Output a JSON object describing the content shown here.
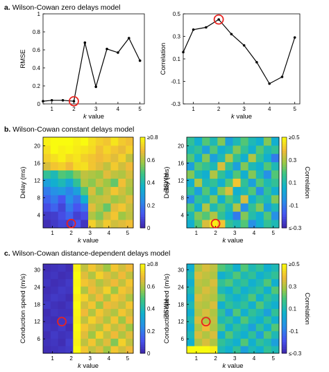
{
  "panels": [
    {
      "letter": "a.",
      "title": "Wilson-Cowan zero delays model"
    },
    {
      "letter": "b.",
      "title": "Wilson-Cowan constant delays model"
    },
    {
      "letter": "c.",
      "title": "Wilson-Cowan distance-dependent delays model"
    }
  ],
  "colors": {
    "line": "#000000",
    "highlight": "#e8231f",
    "heat_low": "#3e26a8",
    "heat_high": "#f9fb0e"
  },
  "chart_data": [
    {
      "id": "a-rmse",
      "type": "line",
      "xlabel_var": "k",
      "xlabel_rest": " value",
      "ylabel": "RMSE",
      "xlim": [
        0.6,
        5.2
      ],
      "ylim": [
        0,
        1
      ],
      "xticks": [
        "1",
        "2",
        "3",
        "4",
        "5"
      ],
      "yticks": [
        "0",
        "0.2",
        "0.4",
        "0.6",
        "0.8",
        "1"
      ],
      "x": [
        0.6,
        1.0,
        1.5,
        2.0,
        2.5,
        3.0,
        3.5,
        4.0,
        4.5,
        5.0
      ],
      "y": [
        0.03,
        0.04,
        0.04,
        0.03,
        0.68,
        0.19,
        0.61,
        0.57,
        0.73,
        0.48
      ],
      "highlight": {
        "x": 2.0,
        "y": 0.03
      }
    },
    {
      "id": "a-corr",
      "type": "line",
      "xlabel_var": "k",
      "xlabel_rest": " value",
      "ylabel": "Correlation",
      "xlim": [
        0.6,
        5.2
      ],
      "ylim": [
        -0.3,
        0.5
      ],
      "xticks": [
        "1",
        "2",
        "3",
        "4",
        "5"
      ],
      "yticks": [
        "-0.3",
        "-0.1",
        "0.1",
        "0.3",
        "0.5"
      ],
      "x": [
        0.6,
        1.0,
        1.5,
        2.0,
        2.5,
        3.0,
        3.5,
        4.0,
        4.5,
        5.0
      ],
      "y": [
        0.16,
        0.36,
        0.38,
        0.45,
        0.32,
        0.22,
        0.07,
        -0.12,
        -0.06,
        0.29
      ],
      "highlight": {
        "x": 2.0,
        "y": 0.45
      }
    },
    {
      "id": "b-rmse",
      "type": "heatmap",
      "xlabel_var": "k",
      "xlabel_rest": " value",
      "ylabel": "Delay (ms)",
      "colorbar_label": "RMSE",
      "colorbar_ticks": [
        "≥0.8",
        "0.6",
        "0.4",
        "0.2",
        "0"
      ],
      "clim": [
        0,
        0.8
      ],
      "xticks": [
        "1",
        "2",
        "3",
        "4",
        "5"
      ],
      "yticks": [
        "4",
        "8",
        "12",
        "16",
        "20"
      ],
      "grid_cols_x": [
        0.5,
        5.3
      ],
      "grid_rows_y": [
        1,
        22
      ],
      "highlight": {
        "x": 2.0,
        "y": 2
      },
      "values": [
        [
          0.02,
          0.05,
          0.08,
          0.06,
          0.12,
          0.04,
          0.72,
          0.62,
          0.71,
          0.64,
          0.66,
          0.69
        ],
        [
          0.05,
          0.06,
          0.1,
          0.15,
          0.07,
          0.1,
          0.6,
          0.55,
          0.64,
          0.7,
          0.58,
          0.62
        ],
        [
          0.1,
          0.15,
          0.08,
          0.2,
          0.12,
          0.18,
          0.66,
          0.6,
          0.52,
          0.66,
          0.7,
          0.63
        ],
        [
          0.15,
          0.2,
          0.12,
          0.25,
          0.18,
          0.35,
          0.6,
          0.62,
          0.64,
          0.58,
          0.61,
          0.66
        ],
        [
          0.2,
          0.25,
          0.28,
          0.22,
          0.3,
          0.5,
          0.65,
          0.55,
          0.62,
          0.7,
          0.64,
          0.59
        ],
        [
          0.3,
          0.35,
          0.4,
          0.32,
          0.45,
          0.6,
          0.56,
          0.63,
          0.58,
          0.52,
          0.69,
          0.61
        ],
        [
          0.45,
          0.4,
          0.5,
          0.48,
          0.55,
          0.62,
          0.6,
          0.58,
          0.66,
          0.62,
          0.6,
          0.65
        ],
        [
          0.65,
          0.7,
          0.72,
          0.68,
          0.74,
          0.75,
          0.7,
          0.66,
          0.62,
          0.71,
          0.64,
          0.68
        ],
        [
          0.72,
          0.75,
          0.78,
          0.74,
          0.76,
          0.72,
          0.7,
          0.68,
          0.7,
          0.66,
          0.72,
          0.62
        ],
        [
          0.75,
          0.8,
          0.78,
          0.79,
          0.77,
          0.76,
          0.74,
          0.69,
          0.73,
          0.7,
          0.67,
          0.72
        ],
        [
          0.78,
          0.8,
          0.8,
          0.8,
          0.78,
          0.8,
          0.75,
          0.72,
          0.7,
          0.76,
          0.71,
          0.69
        ]
      ]
    },
    {
      "id": "b-corr",
      "type": "heatmap",
      "xlabel_var": "k",
      "xlabel_rest": " value",
      "ylabel": "Delay (ms)",
      "colorbar_label": "Correlation",
      "colorbar_ticks": [
        "≥0.5",
        "0.3",
        "0.1",
        "-0.1",
        "≤-0.3"
      ],
      "clim": [
        -0.3,
        0.5
      ],
      "xticks": [
        "1",
        "2",
        "3",
        "4",
        "5"
      ],
      "yticks": [
        "4",
        "8",
        "12",
        "16",
        "20"
      ],
      "grid_cols_x": [
        0.5,
        5.3
      ],
      "grid_rows_y": [
        1,
        22
      ],
      "highlight": {
        "x": 2.0,
        "y": 2
      },
      "values": [
        [
          0.05,
          0.2,
          0.35,
          0.48,
          0.4,
          0.15,
          0.1,
          0.2,
          -0.05,
          0.05,
          0.15,
          0.1
        ],
        [
          0.1,
          0.25,
          0.2,
          0.3,
          0.15,
          0.05,
          -0.1,
          0.25,
          0.12,
          0.05,
          0.2,
          -0.05
        ],
        [
          0.2,
          0.05,
          0.3,
          0.1,
          0.2,
          0.1,
          0.3,
          -0.05,
          0.15,
          0.25,
          0.0,
          0.1
        ],
        [
          -0.05,
          0.15,
          0.1,
          0.25,
          0.05,
          0.2,
          0.1,
          0.35,
          0.05,
          0.15,
          0.1,
          0.25
        ],
        [
          0.15,
          0.0,
          0.2,
          0.05,
          0.25,
          0.35,
          0.05,
          0.1,
          0.2,
          -0.05,
          0.15,
          0.05
        ],
        [
          0.05,
          0.3,
          0.1,
          0.15,
          0.05,
          0.2,
          0.4,
          0.15,
          0.0,
          0.2,
          0.1,
          0.15
        ],
        [
          0.25,
          0.1,
          0.05,
          0.3,
          0.15,
          0.05,
          0.2,
          0.05,
          0.25,
          0.1,
          -0.05,
          0.2
        ],
        [
          0.0,
          0.2,
          0.15,
          0.1,
          0.35,
          0.15,
          0.0,
          0.25,
          0.1,
          0.05,
          0.2,
          0.1
        ],
        [
          0.2,
          0.05,
          0.25,
          0.0,
          0.1,
          0.3,
          0.15,
          0.05,
          0.3,
          0.15,
          0.05,
          -0.1
        ],
        [
          0.1,
          0.15,
          0.0,
          0.2,
          0.05,
          0.1,
          0.25,
          0.15,
          0.05,
          0.2,
          0.1,
          0.15
        ],
        [
          0.15,
          0.05,
          0.2,
          0.1,
          0.25,
          0.0,
          0.1,
          0.2,
          0.1,
          0.05,
          0.25,
          0.05
        ]
      ]
    },
    {
      "id": "c-rmse",
      "type": "heatmap",
      "xlabel_var": "k",
      "xlabel_rest": " value",
      "ylabel": "Conduction speed (m/s)",
      "colorbar_label": "RMSE",
      "colorbar_ticks": [
        "≥0.8",
        "0.6",
        "0.4",
        "0.2",
        "0"
      ],
      "clim": [
        0,
        0.8
      ],
      "xticks": [
        "1",
        "2",
        "3",
        "4",
        "5"
      ],
      "yticks": [
        "6",
        "12",
        "18",
        "24",
        "30"
      ],
      "grid_cols_x": [
        0.5,
        5.3
      ],
      "grid_rows_y": [
        1,
        32
      ],
      "highlight": {
        "x": 1.5,
        "y": 12
      },
      "values": [
        [
          0.02,
          0.03,
          0.04,
          0.05,
          0.8,
          0.7,
          0.62,
          0.66,
          0.58,
          0.7,
          0.64,
          0.68
        ],
        [
          0.03,
          0.04,
          0.02,
          0.06,
          0.78,
          0.62,
          0.7,
          0.6,
          0.66,
          0.55,
          0.72,
          0.62
        ],
        [
          0.02,
          0.05,
          0.03,
          0.04,
          0.79,
          0.66,
          0.58,
          0.72,
          0.62,
          0.68,
          0.6,
          0.66
        ],
        [
          0.04,
          0.03,
          0.05,
          0.02,
          0.8,
          0.7,
          0.64,
          0.6,
          0.7,
          0.62,
          0.66,
          0.58
        ],
        [
          0.03,
          0.02,
          0.04,
          0.05,
          0.78,
          0.62,
          0.72,
          0.66,
          0.6,
          0.7,
          0.58,
          0.68
        ],
        [
          0.02,
          0.04,
          0.03,
          0.03,
          0.79,
          0.68,
          0.6,
          0.7,
          0.64,
          0.6,
          0.7,
          0.64
        ],
        [
          0.05,
          0.03,
          0.02,
          0.04,
          0.8,
          0.64,
          0.7,
          0.58,
          0.68,
          0.66,
          0.62,
          0.7
        ],
        [
          0.03,
          0.05,
          0.04,
          0.02,
          0.78,
          0.72,
          0.62,
          0.68,
          0.6,
          0.7,
          0.66,
          0.6
        ],
        [
          0.02,
          0.03,
          0.05,
          0.04,
          0.8,
          0.6,
          0.68,
          0.64,
          0.72,
          0.58,
          0.7,
          0.66
        ],
        [
          0.04,
          0.02,
          0.03,
          0.05,
          0.79,
          0.7,
          0.66,
          0.6,
          0.64,
          0.68,
          0.62,
          0.7
        ],
        [
          0.03,
          0.04,
          0.02,
          0.03,
          0.8,
          0.66,
          0.6,
          0.72,
          0.66,
          0.62,
          0.68,
          0.62
        ],
        [
          0.02,
          0.03,
          0.04,
          0.02,
          0.78,
          0.62,
          0.7,
          0.64,
          0.58,
          0.7,
          0.64,
          0.68
        ]
      ]
    },
    {
      "id": "c-corr",
      "type": "heatmap",
      "xlabel_var": "k",
      "xlabel_rest": " value",
      "ylabel": "Conduction speed (m/s)",
      "colorbar_label": "Correlation",
      "colorbar_ticks": [
        "≥0.5",
        "0.3",
        "0.1",
        "-0.1",
        "≤-0.3"
      ],
      "clim": [
        -0.3,
        0.5
      ],
      "xticks": [
        "1",
        "2",
        "3",
        "4",
        "5"
      ],
      "yticks": [
        "6",
        "12",
        "18",
        "24",
        "30"
      ],
      "grid_cols_x": [
        0.5,
        5.3
      ],
      "grid_rows_y": [
        1,
        32
      ],
      "highlight": {
        "x": 1.5,
        "y": 12
      },
      "values": [
        [
          0.5,
          0.5,
          0.5,
          0.48,
          0.1,
          0.05,
          0.15,
          0.0,
          0.1,
          0.05,
          0.15,
          0.1
        ],
        [
          0.05,
          0.3,
          0.35,
          0.3,
          0.15,
          0.1,
          0.05,
          0.2,
          0.05,
          0.15,
          0.1,
          0.0
        ],
        [
          0.1,
          0.35,
          0.3,
          0.35,
          0.05,
          0.2,
          0.1,
          0.05,
          0.15,
          0.0,
          0.2,
          0.1
        ],
        [
          0.05,
          0.3,
          0.38,
          0.3,
          0.2,
          0.05,
          0.15,
          0.1,
          0.0,
          0.15,
          0.05,
          0.2
        ],
        [
          0.1,
          0.35,
          0.3,
          0.32,
          0.1,
          0.15,
          0.05,
          0.2,
          0.1,
          0.05,
          0.15,
          0.05
        ],
        [
          0.05,
          0.3,
          0.35,
          0.3,
          0.15,
          0.0,
          0.2,
          0.05,
          0.15,
          0.1,
          0.0,
          0.15
        ],
        [
          0.1,
          0.32,
          0.3,
          0.35,
          0.05,
          0.15,
          0.1,
          0.15,
          0.05,
          0.2,
          0.1,
          0.05
        ],
        [
          0.05,
          0.35,
          0.32,
          0.3,
          0.2,
          0.1,
          0.05,
          0.1,
          0.2,
          0.05,
          0.15,
          0.1
        ],
        [
          0.1,
          0.3,
          0.35,
          0.32,
          0.1,
          0.05,
          0.15,
          0.05,
          0.1,
          0.15,
          0.05,
          0.2
        ],
        [
          0.05,
          0.32,
          0.3,
          0.35,
          0.15,
          0.2,
          0.1,
          0.15,
          0.05,
          0.1,
          0.2,
          0.05
        ],
        [
          0.1,
          0.35,
          0.32,
          0.3,
          0.05,
          0.1,
          0.2,
          0.1,
          0.15,
          0.05,
          0.1,
          0.15
        ],
        [
          0.05,
          0.3,
          0.35,
          0.32,
          0.2,
          0.15,
          0.05,
          0.2,
          0.1,
          0.15,
          0.05,
          0.1
        ]
      ]
    }
  ]
}
